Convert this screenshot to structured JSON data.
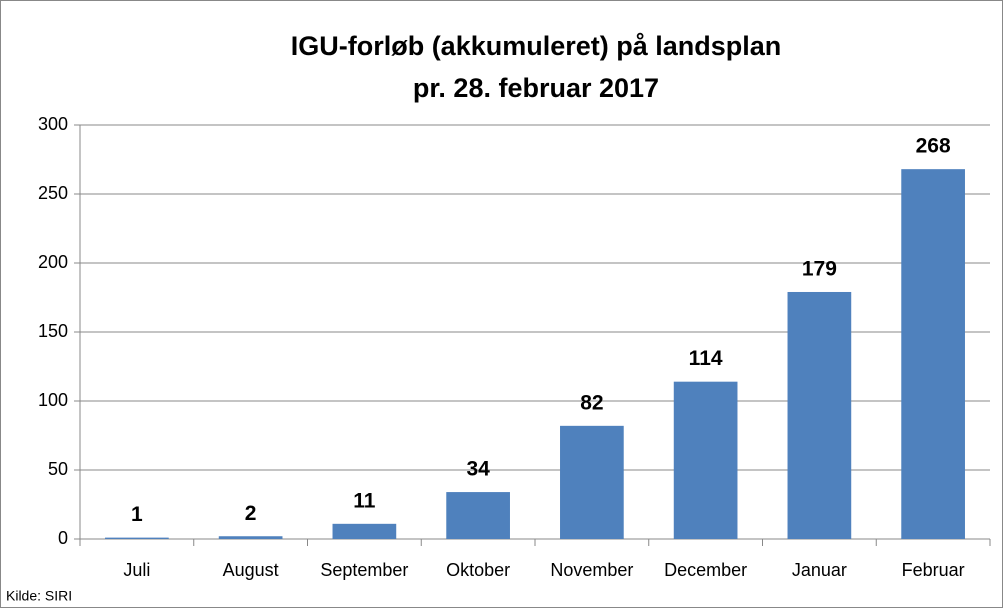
{
  "chart_data": {
    "type": "bar",
    "title": "IGU-forløb (akkumuleret) på landsplan",
    "subtitle": "pr. 28. februar 2017",
    "source": "Kilde: SIRI",
    "categories": [
      "Juli",
      "August",
      "September",
      "Oktober",
      "November",
      "December",
      "Januar",
      "Februar"
    ],
    "values": [
      1,
      2,
      11,
      34,
      82,
      114,
      179,
      268
    ],
    "color": "#4f81bd",
    "ylim": [
      0,
      300
    ],
    "yticks": [
      0,
      50,
      100,
      150,
      200,
      250,
      300
    ],
    "grid": true
  }
}
